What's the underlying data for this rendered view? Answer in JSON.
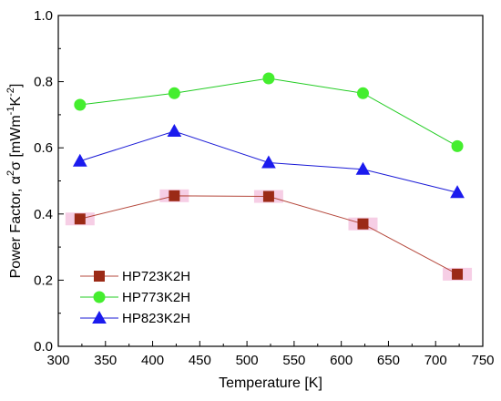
{
  "chart_data": {
    "type": "line",
    "xlabel": "Temperature [K]",
    "ylabel": {
      "prefix": "Power Factor, ",
      "alpha": "α",
      "sq": "2",
      "sigma": "σ",
      "unit_open": " [mWm",
      "exp1": "-1",
      "mid": "K",
      "exp2": "-2",
      "unit_close": "]"
    },
    "xlim": [
      300,
      750
    ],
    "ylim": [
      0.0,
      1.0
    ],
    "xticks": [
      300,
      350,
      400,
      450,
      500,
      550,
      600,
      650,
      700,
      750
    ],
    "yticks": [
      0.0,
      0.2,
      0.4,
      0.6,
      0.8,
      1.0
    ],
    "x_minor_step": 25,
    "y_minor_step": 0.1,
    "grid": false,
    "legend_position": "bottom-left",
    "series": [
      {
        "name": "HP723K2H",
        "color": "#b5483c",
        "marker": "square",
        "marker_fill": "#9b2a16",
        "highlight_color": "#f4c6e0",
        "x": [
          323,
          423,
          523,
          623,
          723
        ],
        "values": [
          0.385,
          0.455,
          0.453,
          0.37,
          0.218
        ]
      },
      {
        "name": "HP773K2H",
        "color": "#22cc22",
        "marker": "circle",
        "marker_fill": "#44ee2e",
        "x": [
          323,
          423,
          523,
          623,
          723
        ],
        "values": [
          0.73,
          0.765,
          0.81,
          0.765,
          0.605
        ]
      },
      {
        "name": "HP823K2H",
        "color": "#1a1ad6",
        "marker": "triangle",
        "marker_fill": "#1b1bee",
        "x": [
          323,
          423,
          523,
          623,
          723
        ],
        "values": [
          0.56,
          0.65,
          0.555,
          0.535,
          0.465
        ]
      }
    ]
  }
}
